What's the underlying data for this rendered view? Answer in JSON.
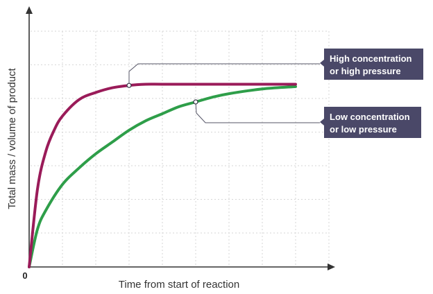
{
  "chart_data": {
    "type": "line",
    "xlabel": "Time from start of reaction",
    "ylabel": "Total mass / volume of product",
    "origin_label": "0",
    "grid": true,
    "series": [
      {
        "name": "High concentration or high pressure",
        "color": "#9a1b59",
        "x": [
          0,
          0.25,
          0.5,
          0.75,
          1,
          1.5,
          2,
          2.5,
          3,
          3.5,
          4,
          5,
          6,
          7,
          8
        ],
        "y": [
          0,
          3.3,
          4.9,
          5.8,
          6.4,
          7.1,
          7.4,
          7.6,
          7.7,
          7.75,
          7.75,
          7.75,
          7.75,
          7.75,
          7.75
        ]
      },
      {
        "name": "Low concentration or low pressure",
        "color": "#2e9e49",
        "x": [
          0,
          0.25,
          0.5,
          1,
          1.5,
          2,
          2.5,
          3,
          3.5,
          4,
          4.5,
          5,
          5.5,
          6,
          7,
          8
        ],
        "y": [
          0,
          1.6,
          2.4,
          3.5,
          4.2,
          4.8,
          5.3,
          5.8,
          6.2,
          6.5,
          6.8,
          7.0,
          7.2,
          7.35,
          7.55,
          7.65
        ]
      }
    ],
    "annotations": [
      {
        "series": 0,
        "lines": [
          "High concentration",
          "or high pressure"
        ]
      },
      {
        "series": 1,
        "lines": [
          "Low concentration",
          "or low pressure"
        ]
      }
    ]
  }
}
